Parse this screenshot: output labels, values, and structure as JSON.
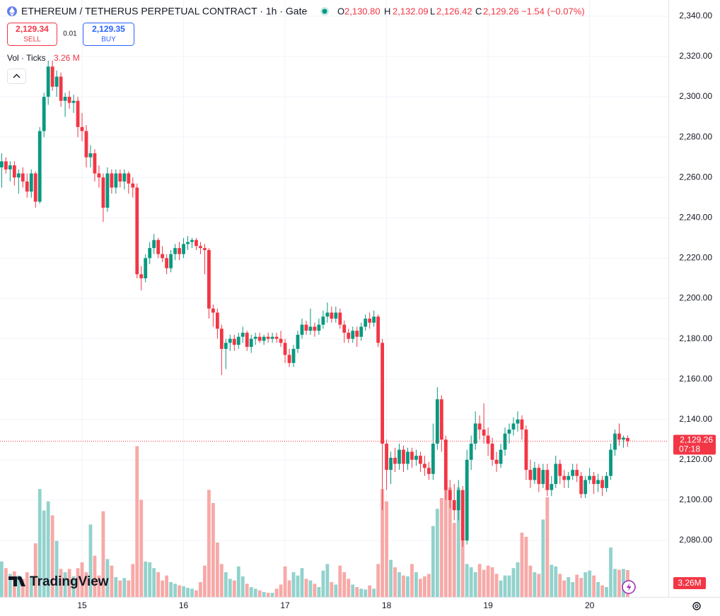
{
  "chart_data": {
    "type": "candlestick",
    "title": "ETHEREUM / TETHERUS PERPETUAL CONTRACT · 1h · Gate",
    "legend": [
      {
        "key": "O",
        "value": "2,130.80"
      },
      {
        "key": "H",
        "value": "2,132.09"
      },
      {
        "key": "L",
        "value": "2,126.42"
      },
      {
        "key": "C",
        "value": "2,129.26"
      }
    ],
    "change": "−1.54 (−0.07%)",
    "sell_price": "2,129.34",
    "sell_label": "SELL",
    "spread": "0.01",
    "buy_price": "2,129.35",
    "buy_label": "BUY",
    "volume_title": "Vol · Ticks",
    "volume_value": "3.26 M",
    "volume_badge": "3.26M",
    "last_price_label": "2,129.26",
    "countdown": "07:18",
    "logo": "TradingView",
    "up_color": "#089981",
    "down_color": "#f23645",
    "volume_up_color": "#92d2cc",
    "volume_down_color": "#f7a9a7",
    "ylim": [
      2052,
      2348
    ],
    "yticks": [
      {
        "value": 2080,
        "label": "2,080.00"
      },
      {
        "value": 2100,
        "label": "2,100.00"
      },
      {
        "value": 2120,
        "label": "2,120.00"
      },
      {
        "value": 2140,
        "label": "2,140.00"
      },
      {
        "value": 2160,
        "label": "2,160.00"
      },
      {
        "value": 2180,
        "label": "2,180.00"
      },
      {
        "value": 2200,
        "label": "2,200.00"
      },
      {
        "value": 2220,
        "label": "2,220.00"
      },
      {
        "value": 2240,
        "label": "2,240.00"
      },
      {
        "value": 2260,
        "label": "2,260.00"
      },
      {
        "value": 2280,
        "label": "2,280.00"
      },
      {
        "value": 2300,
        "label": "2,300.00"
      },
      {
        "value": 2320,
        "label": "2,320.00"
      },
      {
        "value": 2340,
        "label": "2,340.00"
      }
    ],
    "grid": true,
    "categories": [
      null,
      null,
      null,
      null,
      null,
      null,
      null,
      null,
      null,
      null,
      null,
      null,
      null,
      null,
      null,
      null,
      null,
      null,
      null,
      "15",
      null,
      null,
      null,
      null,
      null,
      null,
      null,
      null,
      null,
      null,
      null,
      null,
      null,
      null,
      null,
      null,
      null,
      null,
      null,
      null,
      null,
      null,
      null,
      "16",
      null,
      null,
      null,
      null,
      null,
      null,
      null,
      null,
      null,
      null,
      null,
      null,
      null,
      null,
      null,
      null,
      null,
      null,
      null,
      null,
      null,
      null,
      null,
      "17",
      null,
      null,
      null,
      null,
      null,
      null,
      null,
      null,
      null,
      null,
      null,
      null,
      null,
      null,
      null,
      null,
      null,
      null,
      null,
      null,
      null,
      null,
      null,
      "18",
      null,
      null,
      null,
      null,
      null,
      null,
      null,
      null,
      null,
      null,
      null,
      null,
      null,
      null,
      null,
      null,
      null,
      null,
      null,
      null,
      null,
      null,
      null,
      "19",
      null,
      null,
      null,
      null,
      null,
      null,
      null,
      null,
      null,
      null,
      null,
      null,
      null,
      null,
      null,
      null,
      null,
      null,
      null,
      null,
      null,
      null,
      null,
      "20",
      null,
      null,
      null,
      null,
      null,
      null,
      null,
      null,
      null
    ],
    "ohlc": [
      [
        2265,
        2272,
        2255,
        2268
      ],
      [
        2268,
        2270,
        2262,
        2264
      ],
      [
        2264,
        2268,
        2258,
        2266
      ],
      [
        2266,
        2268,
        2256,
        2260
      ],
      [
        2260,
        2264,
        2252,
        2262
      ],
      [
        2262,
        2265,
        2255,
        2258
      ],
      [
        2258,
        2262,
        2250,
        2253
      ],
      [
        2253,
        2264,
        2250,
        2262
      ],
      [
        2262,
        2263,
        2245,
        2248
      ],
      [
        2248,
        2285,
        2247,
        2283
      ],
      [
        2283,
        2302,
        2280,
        2300
      ],
      [
        2300,
        2318,
        2296,
        2315
      ],
      [
        2315,
        2318,
        2303,
        2305
      ],
      [
        2305,
        2313,
        2300,
        2310
      ],
      [
        2310,
        2312,
        2295,
        2298
      ],
      [
        2298,
        2302,
        2290,
        2300
      ],
      [
        2300,
        2303,
        2294,
        2297
      ],
      [
        2297,
        2301,
        2292,
        2298
      ],
      [
        2298,
        2300,
        2280,
        2285
      ],
      [
        2285,
        2292,
        2278,
        2283
      ],
      [
        2283,
        2286,
        2265,
        2270
      ],
      [
        2270,
        2276,
        2265,
        2272
      ],
      [
        2272,
        2274,
        2258,
        2262
      ],
      [
        2262,
        2266,
        2255,
        2260
      ],
      [
        2260,
        2262,
        2238,
        2245
      ],
      [
        2245,
        2265,
        2243,
        2262
      ],
      [
        2262,
        2264,
        2252,
        2255
      ],
      [
        2255,
        2264,
        2252,
        2262
      ],
      [
        2262,
        2264,
        2255,
        2258
      ],
      [
        2258,
        2264,
        2254,
        2262
      ],
      [
        2262,
        2263,
        2252,
        2257
      ],
      [
        2257,
        2260,
        2250,
        2255
      ],
      [
        2255,
        2257,
        2210,
        2212
      ],
      [
        2212,
        2216,
        2204,
        2210
      ],
      [
        2210,
        2222,
        2208,
        2220
      ],
      [
        2220,
        2228,
        2217,
        2225
      ],
      [
        2225,
        2232,
        2222,
        2229
      ],
      [
        2229,
        2230,
        2220,
        2222
      ],
      [
        2222,
        2226,
        2218,
        2220
      ],
      [
        2220,
        2222,
        2212,
        2215
      ],
      [
        2215,
        2224,
        2213,
        2222
      ],
      [
        2222,
        2227,
        2219,
        2225
      ],
      [
        2225,
        2228,
        2219,
        2222
      ],
      [
        2222,
        2230,
        2220,
        2227
      ],
      [
        2227,
        2231,
        2224,
        2228
      ],
      [
        2228,
        2230,
        2225,
        2229
      ],
      [
        2229,
        2230,
        2224,
        2226
      ],
      [
        2226,
        2228,
        2222,
        2225
      ],
      [
        2225,
        2227,
        2212,
        2224
      ],
      [
        2224,
        2225,
        2190,
        2195
      ],
      [
        2195,
        2197,
        2186,
        2193
      ],
      [
        2193,
        2195,
        2180,
        2185
      ],
      [
        2185,
        2187,
        2162,
        2175
      ],
      [
        2175,
        2180,
        2165,
        2178
      ],
      [
        2178,
        2182,
        2174,
        2180
      ],
      [
        2180,
        2182,
        2174,
        2177
      ],
      [
        2177,
        2183,
        2175,
        2181
      ],
      [
        2181,
        2186,
        2178,
        2183
      ],
      [
        2183,
        2184,
        2174,
        2176
      ],
      [
        2176,
        2182,
        2173,
        2180
      ],
      [
        2180,
        2183,
        2177,
        2181
      ],
      [
        2181,
        2183,
        2178,
        2179
      ],
      [
        2179,
        2182,
        2177,
        2181
      ],
      [
        2181,
        2183,
        2178,
        2180
      ],
      [
        2180,
        2183,
        2178,
        2181
      ],
      [
        2181,
        2183,
        2178,
        2180
      ],
      [
        2180,
        2184,
        2176,
        2178
      ],
      [
        2178,
        2180,
        2168,
        2172
      ],
      [
        2172,
        2175,
        2166,
        2168
      ],
      [
        2168,
        2177,
        2166,
        2175
      ],
      [
        2175,
        2184,
        2173,
        2182
      ],
      [
        2182,
        2190,
        2180,
        2187
      ],
      [
        2187,
        2189,
        2182,
        2184
      ],
      [
        2184,
        2195,
        2182,
        2186
      ],
      [
        2186,
        2188,
        2181,
        2184
      ],
      [
        2184,
        2190,
        2182,
        2187
      ],
      [
        2187,
        2194,
        2185,
        2191
      ],
      [
        2191,
        2198,
        2188,
        2193
      ],
      [
        2193,
        2196,
        2188,
        2190
      ],
      [
        2190,
        2196,
        2188,
        2193
      ],
      [
        2193,
        2195,
        2185,
        2187
      ],
      [
        2187,
        2189,
        2178,
        2183
      ],
      [
        2183,
        2185,
        2178,
        2180
      ],
      [
        2180,
        2186,
        2178,
        2184
      ],
      [
        2184,
        2186,
        2176,
        2181
      ],
      [
        2181,
        2188,
        2179,
        2186
      ],
      [
        2186,
        2192,
        2184,
        2190
      ],
      [
        2190,
        2193,
        2185,
        2188
      ],
      [
        2188,
        2194,
        2186,
        2191
      ],
      [
        2191,
        2192,
        2176,
        2178
      ],
      [
        2178,
        2180,
        2095,
        2128
      ],
      [
        2128,
        2130,
        2105,
        2115
      ],
      [
        2115,
        2124,
        2108,
        2121
      ],
      [
        2121,
        2126,
        2114,
        2118
      ],
      [
        2118,
        2128,
        2115,
        2125
      ],
      [
        2125,
        2127,
        2114,
        2118
      ],
      [
        2118,
        2126,
        2115,
        2124
      ],
      [
        2124,
        2126,
        2116,
        2120
      ],
      [
        2120,
        2125,
        2117,
        2122
      ],
      [
        2122,
        2124,
        2114,
        2118
      ],
      [
        2118,
        2122,
        2112,
        2116
      ],
      [
        2116,
        2119,
        2110,
        2113
      ],
      [
        2113,
        2138,
        2110,
        2128
      ],
      [
        2128,
        2156,
        2125,
        2150
      ],
      [
        2150,
        2152,
        2124,
        2130
      ],
      [
        2130,
        2132,
        2100,
        2105
      ],
      [
        2105,
        2110,
        2096,
        2100
      ],
      [
        2100,
        2108,
        2090,
        2095
      ],
      [
        2095,
        2110,
        2090,
        2105
      ],
      [
        2105,
        2107,
        2077,
        2080
      ],
      [
        2080,
        2125,
        2078,
        2120
      ],
      [
        2120,
        2132,
        2115,
        2128
      ],
      [
        2128,
        2144,
        2125,
        2138
      ],
      [
        2138,
        2142,
        2130,
        2135
      ],
      [
        2135,
        2148,
        2128,
        2132
      ],
      [
        2132,
        2136,
        2122,
        2128
      ],
      [
        2128,
        2131,
        2117,
        2120
      ],
      [
        2120,
        2124,
        2114,
        2118
      ],
      [
        2118,
        2128,
        2116,
        2125
      ],
      [
        2125,
        2136,
        2122,
        2133
      ],
      [
        2133,
        2138,
        2128,
        2135
      ],
      [
        2135,
        2141,
        2132,
        2138
      ],
      [
        2138,
        2144,
        2134,
        2140
      ],
      [
        2140,
        2142,
        2130,
        2135
      ],
      [
        2135,
        2137,
        2110,
        2115
      ],
      [
        2115,
        2120,
        2106,
        2110
      ],
      [
        2110,
        2119,
        2108,
        2116
      ],
      [
        2116,
        2118,
        2104,
        2108
      ],
      [
        2108,
        2118,
        2106,
        2115
      ],
      [
        2115,
        2118,
        2102,
        2105
      ],
      [
        2105,
        2112,
        2102,
        2108
      ],
      [
        2108,
        2122,
        2106,
        2118
      ],
      [
        2118,
        2120,
        2108,
        2112
      ],
      [
        2112,
        2115,
        2106,
        2110
      ],
      [
        2110,
        2114,
        2106,
        2112
      ],
      [
        2112,
        2118,
        2110,
        2115
      ],
      [
        2115,
        2118,
        2109,
        2112
      ],
      [
        2112,
        2114,
        2101,
        2103
      ],
      [
        2103,
        2112,
        2101,
        2110
      ],
      [
        2110,
        2116,
        2108,
        2112
      ],
      [
        2112,
        2114,
        2103,
        2108
      ],
      [
        2108,
        2113,
        2104,
        2110
      ],
      [
        2110,
        2112,
        2102,
        2106
      ],
      [
        2106,
        2114,
        2104,
        2112
      ],
      [
        2112,
        2128,
        2110,
        2125
      ],
      [
        2125,
        2135,
        2122,
        2133
      ],
      [
        2133,
        2138,
        2127,
        2130
      ],
      [
        2130,
        2132,
        2126,
        2131
      ],
      [
        2130.8,
        2132.09,
        2126.42,
        2129.26
      ]
    ],
    "volume": [
      4.3,
      3.5,
      2.8,
      3.1,
      2.6,
      2.2,
      3.0,
      2.5,
      6.5,
      13.1,
      10.5,
      11.6,
      9.9,
      6.8,
      3.4,
      3.0,
      3.4,
      2.5,
      3.5,
      4.2,
      3.0,
      8.8,
      5.0,
      2.6,
      10.4,
      4.6,
      3.8,
      2.4,
      2.0,
      2.3,
      2.0,
      4.0,
      18.3,
      11.8,
      4.3,
      4.2,
      3.5,
      3.0,
      2.0,
      2.6,
      1.8,
      1.6,
      1.4,
      1.3,
      1.1,
      1.0,
      0.8,
      1.8,
      3.8,
      13.0,
      11.4,
      6.6,
      4.0,
      3.0,
      2.2,
      2.0,
      3.7,
      2.5,
      1.6,
      1.2,
      1.0,
      0.8,
      0.6,
      0.5,
      0.5,
      1.0,
      1.5,
      3.7,
      2.0,
      3.0,
      2.6,
      3.5,
      2.2,
      2.0,
      1.6,
      1.2,
      3.2,
      4.0,
      1.8,
      1.5,
      3.8,
      3.0,
      2.2,
      1.5,
      1.2,
      1.0,
      0.9,
      1.4,
      1.0,
      4.0,
      13.1,
      11.6,
      4.5,
      3.6,
      3.0,
      2.6,
      2.5,
      4.0,
      3.0,
      2.2,
      2.5,
      2.8,
      8.6,
      10.7,
      12.0,
      14.0,
      13.3,
      9.0,
      13.3,
      6.9,
      4.0,
      3.6,
      3.0,
      4.0,
      3.3,
      3.8,
      3.6,
      2.8,
      2.0,
      2.6,
      2.6,
      3.5,
      4.2,
      7.8,
      7.3,
      3.8,
      3.0,
      2.8,
      9.4,
      12.1,
      3.9,
      3.7,
      2.8,
      2.0,
      2.4,
      1.8,
      2.7,
      2.3,
      3.0,
      3.2,
      2.6,
      1.8,
      1.4,
      1.2,
      6.0,
      3.4,
      3.3,
      3.4,
      3.26
    ]
  }
}
